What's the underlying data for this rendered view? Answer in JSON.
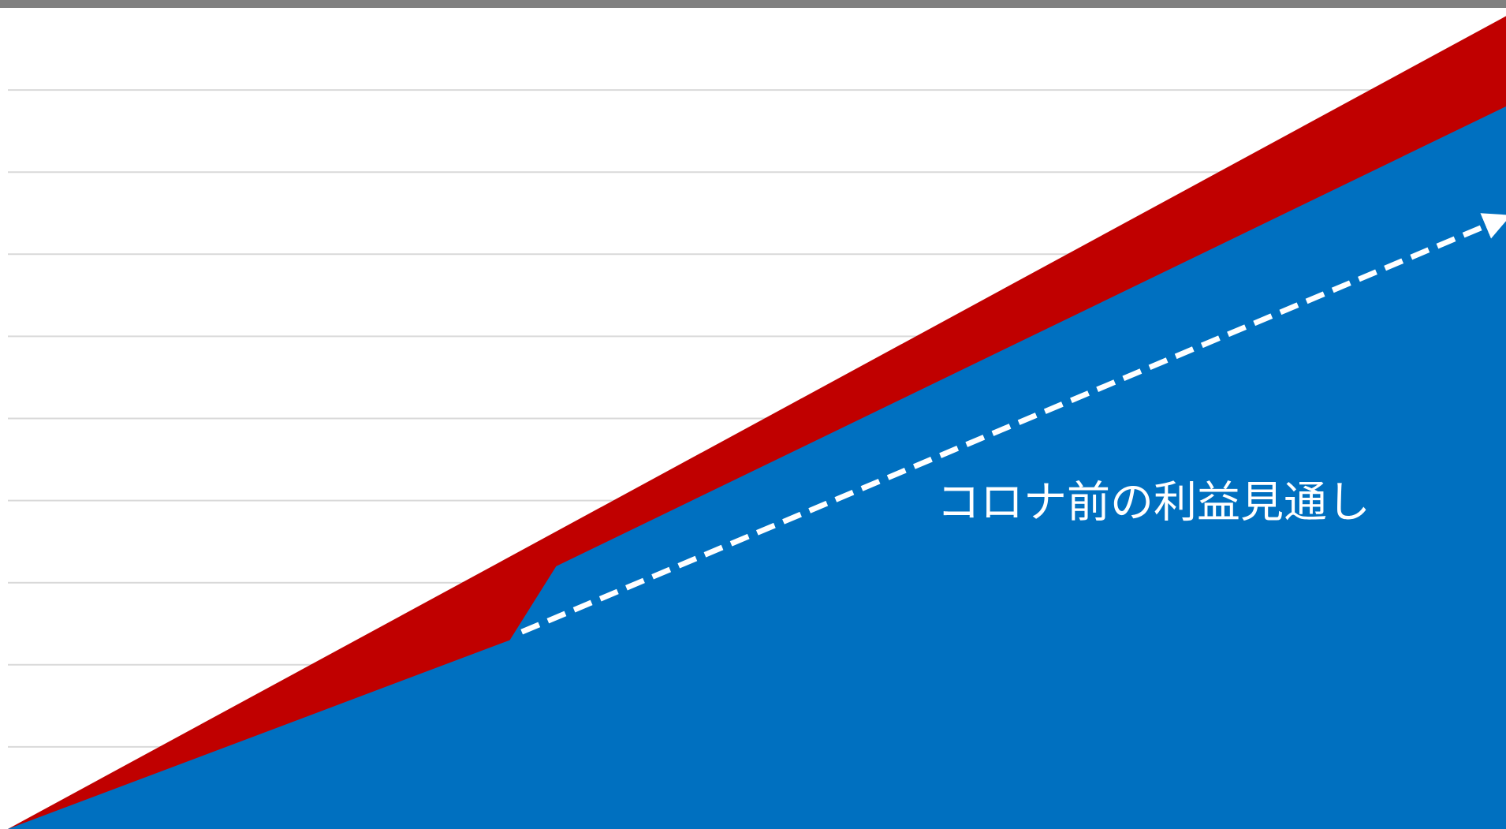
{
  "chart_data": {
    "type": "area",
    "title": "",
    "xlabel": "",
    "ylabel": "",
    "xlim": [
      0,
      1
    ],
    "ylim": [
      0,
      1
    ],
    "grid": true,
    "y_grid_ticks": [
      0.1,
      0.2,
      0.3,
      0.4,
      0.5,
      0.6,
      0.7,
      0.8,
      0.9
    ],
    "series": [
      {
        "type": "area",
        "color": "#c00000",
        "points": [
          {
            "x": 0.0,
            "y": 0.0
          },
          {
            "x": 1.0,
            "y": 0.99
          }
        ]
      },
      {
        "type": "area",
        "color": "#0070c0",
        "points": [
          {
            "x": 0.0,
            "y": 0.0
          },
          {
            "x": 0.335,
            "y": 0.23
          },
          {
            "x": 0.366,
            "y": 0.32
          },
          {
            "x": 1.0,
            "y": 0.88
          }
        ]
      },
      {
        "type": "line",
        "style": "dashed",
        "color": "#ffffff",
        "arrow": true,
        "points": [
          {
            "x": 0.343,
            "y": 0.24
          },
          {
            "x": 1.0,
            "y": 0.745
          }
        ]
      }
    ],
    "annotations": [
      {
        "text": "コロナ前の利益見通し",
        "x": 0.62,
        "y": 0.38
      }
    ]
  }
}
